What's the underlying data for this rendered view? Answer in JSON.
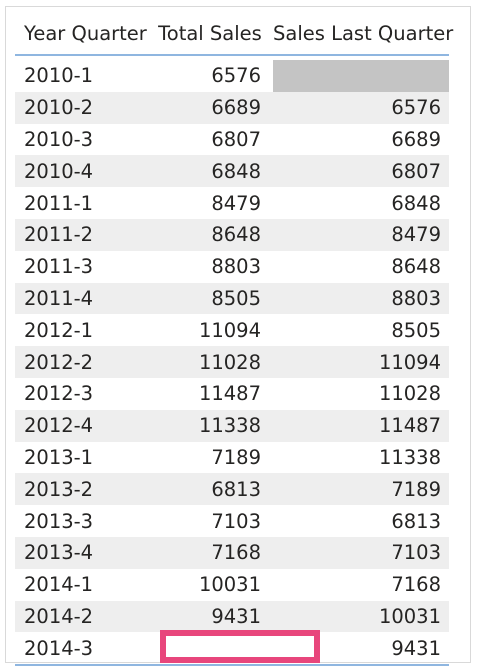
{
  "table": {
    "columns": [
      "Year Quarter",
      "Total Sales",
      "Sales Last Quarter"
    ],
    "rows": [
      [
        "2010-1",
        "6576",
        ""
      ],
      [
        "2010-2",
        "6689",
        "6576"
      ],
      [
        "2010-3",
        "6807",
        "6689"
      ],
      [
        "2010-4",
        "6848",
        "6807"
      ],
      [
        "2011-1",
        "8479",
        "6848"
      ],
      [
        "2011-2",
        "8648",
        "8479"
      ],
      [
        "2011-3",
        "8803",
        "8648"
      ],
      [
        "2011-4",
        "8505",
        "8803"
      ],
      [
        "2012-1",
        "11094",
        "8505"
      ],
      [
        "2012-2",
        "11028",
        "11094"
      ],
      [
        "2012-3",
        "11487",
        "11028"
      ],
      [
        "2012-4",
        "11338",
        "11487"
      ],
      [
        "2013-1",
        "7189",
        "11338"
      ],
      [
        "2013-2",
        "6813",
        "7189"
      ],
      [
        "2013-3",
        "7103",
        "6813"
      ],
      [
        "2013-4",
        "7168",
        "7103"
      ],
      [
        "2014-1",
        "10031",
        "7168"
      ],
      [
        "2014-2",
        "9431",
        "10031"
      ],
      [
        "2014-3",
        "",
        "9431"
      ]
    ]
  },
  "colors": {
    "header_underline": "#8fb6e0",
    "alt_row": "#eeeeee",
    "empty_cell": "#c4c4c4",
    "highlight_box": "#e8467c"
  }
}
